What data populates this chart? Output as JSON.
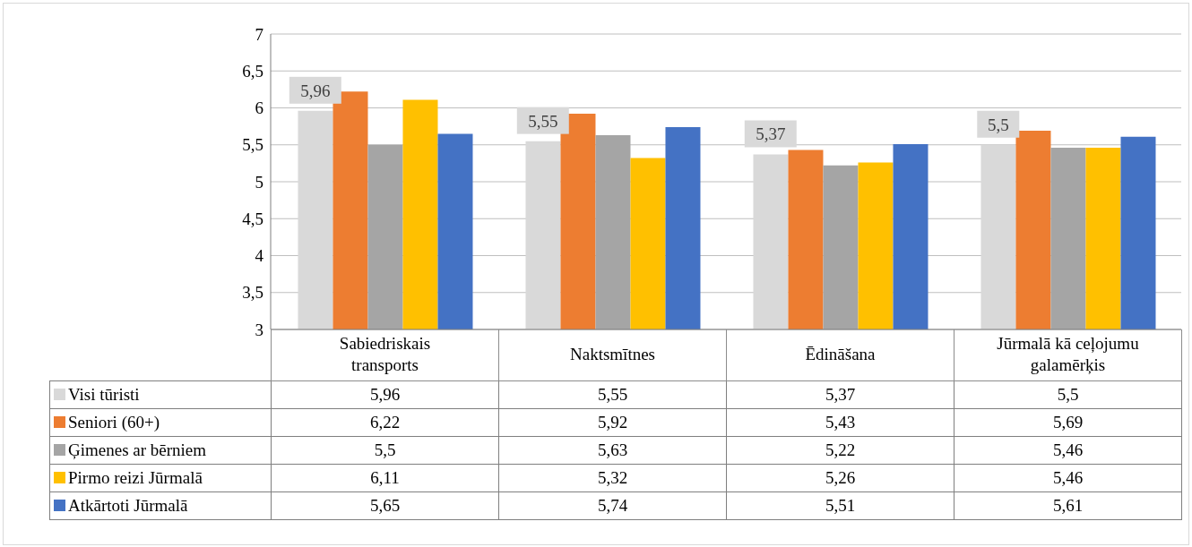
{
  "chart_data": {
    "type": "bar",
    "categories": [
      "Sabiedriskais transports",
      "Naktsmītnes",
      "Ēdināšana",
      "Jūrmalā kā ceļojumu galamērķis"
    ],
    "series": [
      {
        "name": "Visi tūristi",
        "color": "#d9d9d9",
        "values": [
          5.96,
          5.55,
          5.37,
          5.5
        ],
        "value_labels": [
          "5,96",
          "5,55",
          "5,37",
          "5,5"
        ]
      },
      {
        "name": "Seniori (60+)",
        "color": "#ed7d31",
        "values": [
          6.22,
          5.92,
          5.43,
          5.69
        ],
        "value_labels": [
          "6,22",
          "5,92",
          "5,43",
          "5,69"
        ]
      },
      {
        "name": "Ģimenes ar bērniem",
        "color": "#a5a5a5",
        "values": [
          5.5,
          5.63,
          5.22,
          5.46
        ],
        "value_labels": [
          "5,5",
          "5,63",
          "5,22",
          "5,46"
        ]
      },
      {
        "name": "Pirmo reizi Jūrmalā",
        "color": "#ffc000",
        "values": [
          6.11,
          5.32,
          5.26,
          5.46
        ],
        "value_labels": [
          "6,11",
          "5,32",
          "5,26",
          "5,46"
        ]
      },
      {
        "name": "Atkārtoti Jūrmalā",
        "color": "#4472c4",
        "values": [
          5.65,
          5.74,
          5.51,
          5.61
        ],
        "value_labels": [
          "5,65",
          "5,74",
          "5,51",
          "5,61"
        ]
      }
    ],
    "ylim": [
      3,
      7
    ],
    "yticks": [
      3,
      {
        "value": 3.5,
        "label": "3,5"
      },
      4,
      {
        "value": 4.5,
        "label": "4,5"
      },
      5,
      {
        "value": 5.5,
        "label": "5,5"
      },
      6,
      {
        "value": 6.5,
        "label": "6,5"
      },
      7
    ],
    "grid": "y",
    "legend": "bottom",
    "annotations": [
      "5,96",
      "5,55",
      "5,37",
      "5,5"
    ]
  }
}
